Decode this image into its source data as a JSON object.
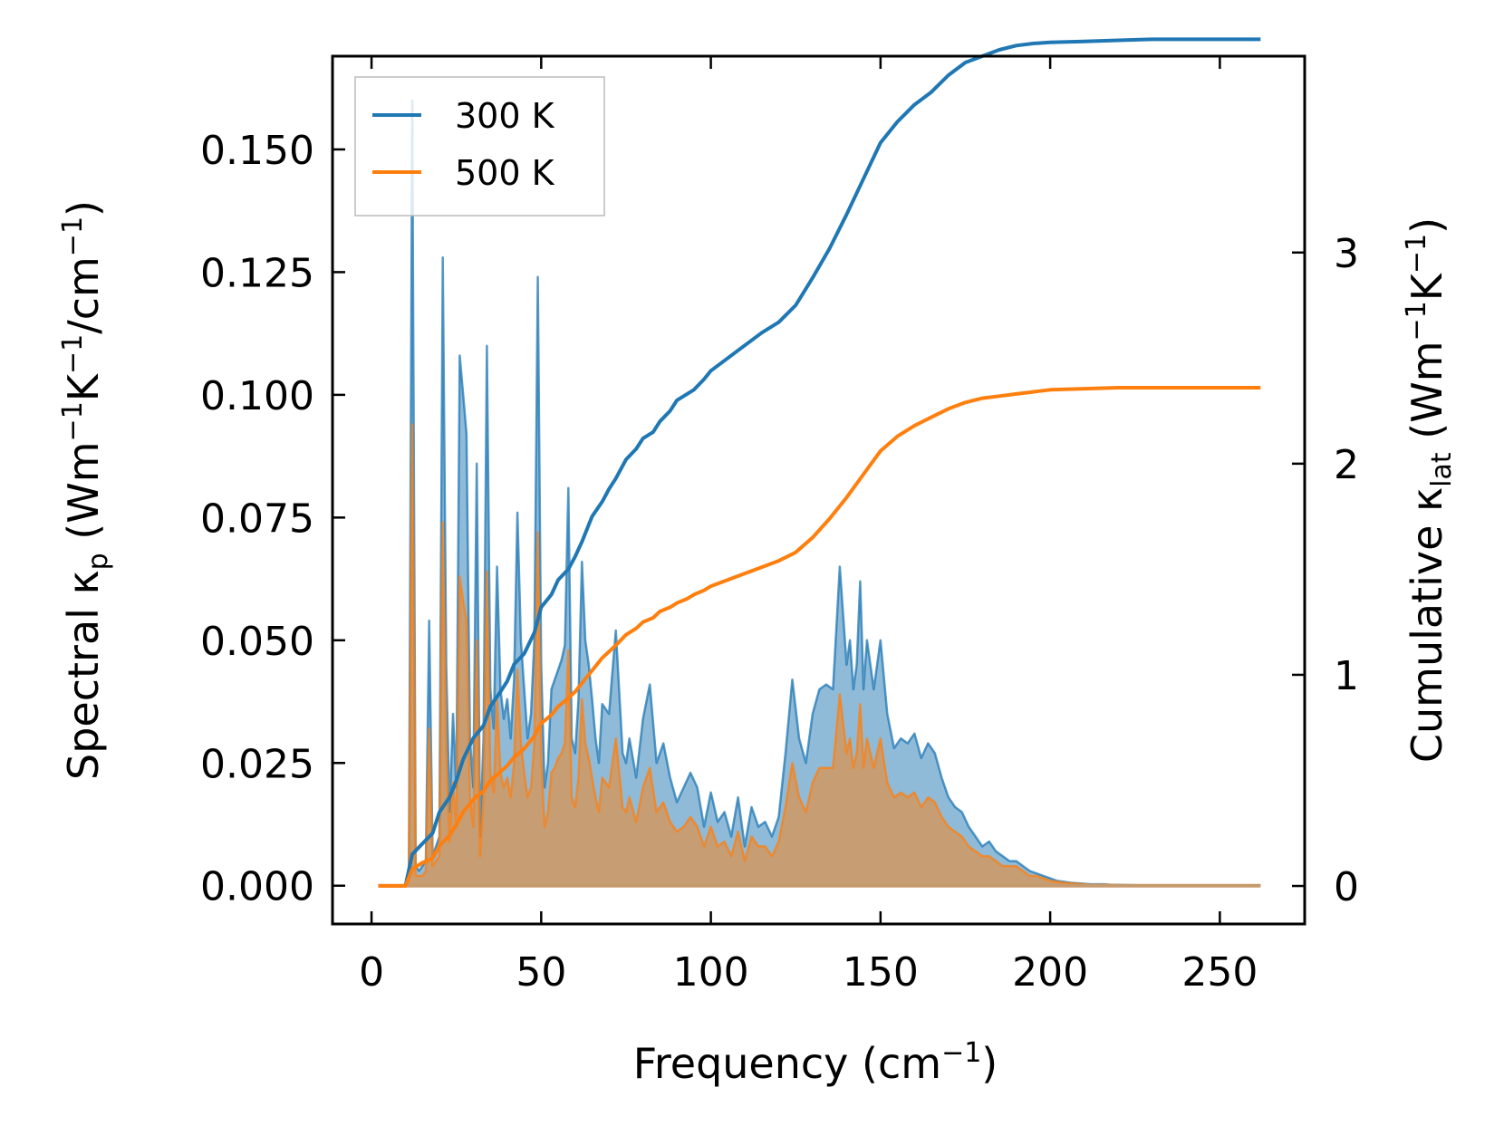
{
  "chart_data": {
    "type": "area",
    "xlabel": "Frequency (cm",
    "xlabel_sup": "−1",
    "xlabel_tail": ")",
    "ylabel_left": {
      "pre": "Spectral κ",
      "sub": "p",
      "mid1": " (Wm",
      "sup1": "−1",
      "mid2": "K",
      "sup2": "−1",
      "mid3": "/cm",
      "sup3": "−1",
      "post": ")"
    },
    "ylabel_right": {
      "pre": "Cumulative κ",
      "sub": "lat",
      "mid1": " (Wm",
      "sup1": "−1",
      "mid2": "K",
      "sup2": "−1",
      "post": ")"
    },
    "xlim": [
      -11.5,
      275
    ],
    "ylim_left": [
      -0.0078,
      0.169
    ],
    "ylim_right": [
      -0.18,
      3.93
    ],
    "xticks": [
      0,
      50,
      100,
      150,
      200,
      250
    ],
    "xtick_labels": [
      "0",
      "50",
      "100",
      "150",
      "200",
      "250"
    ],
    "yticks_left": [
      0,
      0.025,
      0.05,
      0.075,
      0.1,
      0.125,
      0.15
    ],
    "ytick_labels_left": [
      "0.000",
      "0.025",
      "0.050",
      "0.075",
      "0.100",
      "0.125",
      "0.150"
    ],
    "yticks_right": [
      0,
      1,
      2,
      3
    ],
    "ytick_labels_right": [
      "0",
      "1",
      "2",
      "3"
    ],
    "legend_position": "top-left",
    "series": [
      {
        "name": "300 K",
        "color": "#1f77b4",
        "fill_color": "#1f77b4",
        "spectral_x": [
          2,
          10,
          11,
          12,
          13,
          14,
          15,
          16,
          17,
          18,
          19,
          20,
          21,
          22,
          23,
          24,
          25,
          26,
          27,
          28,
          29,
          30,
          31,
          32,
          33,
          34,
          35,
          36,
          37,
          38,
          39,
          40,
          41,
          42,
          43,
          44,
          45,
          46,
          47,
          48,
          49,
          50,
          51,
          52,
          53,
          54,
          55,
          56,
          57,
          58,
          59,
          60,
          61,
          62,
          63,
          64,
          65,
          66,
          67,
          68,
          70,
          72,
          74,
          75,
          76,
          78,
          80,
          82,
          84,
          86,
          88,
          90,
          92,
          94,
          96,
          98,
          100,
          102,
          104,
          106,
          108,
          110,
          112,
          114,
          116,
          118,
          120,
          122,
          124,
          126,
          128,
          130,
          132,
          134,
          136,
          138,
          140,
          141,
          142,
          143,
          144,
          145,
          146,
          148,
          150,
          152,
          154,
          156,
          158,
          160,
          162,
          164,
          166,
          168,
          170,
          172,
          174,
          176,
          178,
          180,
          182,
          184,
          186,
          188,
          190,
          192,
          194,
          196,
          198,
          200,
          202,
          204,
          206,
          208,
          210,
          212,
          214,
          216,
          218,
          220,
          225,
          230,
          235,
          240,
          250,
          262
        ],
        "spectral_y": [
          0,
          0,
          0.002,
          0.16,
          0.004,
          0.003,
          0.004,
          0.005,
          0.054,
          0.006,
          0.008,
          0.01,
          0.128,
          0.045,
          0.015,
          0.035,
          0.02,
          0.108,
          0.1,
          0.092,
          0.03,
          0.02,
          0.086,
          0.01,
          0.03,
          0.11,
          0.04,
          0.032,
          0.065,
          0.04,
          0.034,
          0.038,
          0.03,
          0.042,
          0.076,
          0.05,
          0.04,
          0.03,
          0.035,
          0.05,
          0.124,
          0.045,
          0.02,
          0.025,
          0.04,
          0.042,
          0.044,
          0.046,
          0.049,
          0.081,
          0.03,
          0.027,
          0.038,
          0.066,
          0.05,
          0.045,
          0.038,
          0.03,
          0.025,
          0.037,
          0.035,
          0.052,
          0.027,
          0.025,
          0.03,
          0.022,
          0.034,
          0.041,
          0.025,
          0.029,
          0.022,
          0.017,
          0.02,
          0.023,
          0.02,
          0.012,
          0.019,
          0.013,
          0.015,
          0.01,
          0.018,
          0.008,
          0.016,
          0.012,
          0.013,
          0.01,
          0.014,
          0.027,
          0.042,
          0.03,
          0.025,
          0.035,
          0.04,
          0.041,
          0.04,
          0.065,
          0.045,
          0.05,
          0.04,
          0.045,
          0.062,
          0.04,
          0.05,
          0.04,
          0.05,
          0.035,
          0.028,
          0.03,
          0.029,
          0.031,
          0.026,
          0.029,
          0.027,
          0.022,
          0.018,
          0.016,
          0.015,
          0.012,
          0.01,
          0.008,
          0.009,
          0.007,
          0.006,
          0.005,
          0.005,
          0.004,
          0.003,
          0.0025,
          0.002,
          0.0015,
          0.001,
          0.0008,
          0.0006,
          0.0005,
          0.0004,
          0.0003,
          0.0003,
          0.0003,
          0.0002,
          0.0002,
          0.0001,
          0.0001,
          0.0001,
          0.0001,
          0.0001,
          0.0001
        ],
        "cumulative_x": [
          2,
          10,
          12,
          15,
          18,
          20,
          23,
          25,
          27,
          30,
          33,
          35,
          38,
          40,
          42,
          45,
          48,
          50,
          53,
          55,
          58,
          60,
          62,
          65,
          68,
          70,
          72,
          75,
          78,
          80,
          83,
          85,
          88,
          90,
          93,
          95,
          98,
          100,
          105,
          110,
          115,
          120,
          125,
          130,
          135,
          140,
          145,
          150,
          155,
          160,
          165,
          170,
          175,
          180,
          185,
          190,
          195,
          200,
          210,
          220,
          230,
          240,
          250,
          262
        ],
        "cumulative_y": [
          0,
          0,
          0.15,
          0.2,
          0.25,
          0.35,
          0.42,
          0.5,
          0.6,
          0.7,
          0.76,
          0.85,
          0.92,
          0.97,
          1.05,
          1.1,
          1.2,
          1.32,
          1.38,
          1.45,
          1.5,
          1.56,
          1.63,
          1.75,
          1.82,
          1.88,
          1.93,
          2.02,
          2.07,
          2.12,
          2.15,
          2.2,
          2.25,
          2.3,
          2.33,
          2.35,
          2.4,
          2.44,
          2.5,
          2.56,
          2.62,
          2.67,
          2.75,
          2.88,
          3.02,
          3.18,
          3.35,
          3.52,
          3.62,
          3.7,
          3.76,
          3.84,
          3.9,
          3.93,
          3.96,
          3.98,
          3.99,
          3.995,
          4.0,
          4.005,
          4.01,
          4.01,
          4.01,
          4.01
        ]
      },
      {
        "name": "500 K",
        "color": "#ff7f0e",
        "fill_color": "#ff7f0e",
        "spectral_x": [
          2,
          10,
          11,
          12,
          13,
          14,
          15,
          16,
          17,
          18,
          19,
          20,
          21,
          22,
          23,
          24,
          25,
          26,
          27,
          28,
          29,
          30,
          31,
          32,
          33,
          34,
          35,
          36,
          37,
          38,
          39,
          40,
          41,
          42,
          43,
          44,
          45,
          46,
          47,
          48,
          49,
          50,
          51,
          52,
          53,
          54,
          55,
          56,
          57,
          58,
          59,
          60,
          61,
          62,
          63,
          64,
          65,
          66,
          67,
          68,
          70,
          72,
          74,
          75,
          76,
          78,
          80,
          82,
          84,
          86,
          88,
          90,
          92,
          94,
          96,
          98,
          100,
          102,
          104,
          106,
          108,
          110,
          112,
          114,
          116,
          118,
          120,
          122,
          124,
          126,
          128,
          130,
          132,
          134,
          136,
          138,
          140,
          141,
          142,
          143,
          144,
          145,
          146,
          148,
          150,
          152,
          154,
          156,
          158,
          160,
          162,
          164,
          166,
          168,
          170,
          172,
          174,
          176,
          178,
          180,
          182,
          184,
          186,
          188,
          190,
          192,
          194,
          196,
          198,
          200,
          202,
          204,
          206,
          208,
          210,
          212,
          214,
          216,
          218,
          220,
          225,
          230,
          235,
          240,
          250,
          262
        ],
        "spectral_y": [
          0,
          0,
          0.001,
          0.094,
          0.002,
          0.002,
          0.002,
          0.003,
          0.032,
          0.004,
          0.005,
          0.006,
          0.074,
          0.027,
          0.009,
          0.021,
          0.012,
          0.063,
          0.058,
          0.054,
          0.018,
          0.012,
          0.05,
          0.006,
          0.018,
          0.064,
          0.023,
          0.019,
          0.038,
          0.023,
          0.02,
          0.022,
          0.018,
          0.025,
          0.044,
          0.029,
          0.023,
          0.018,
          0.02,
          0.029,
          0.072,
          0.026,
          0.012,
          0.015,
          0.023,
          0.024,
          0.026,
          0.027,
          0.029,
          0.048,
          0.018,
          0.016,
          0.022,
          0.038,
          0.029,
          0.026,
          0.022,
          0.018,
          0.015,
          0.022,
          0.02,
          0.03,
          0.016,
          0.015,
          0.018,
          0.013,
          0.02,
          0.024,
          0.015,
          0.017,
          0.013,
          0.011,
          0.012,
          0.014,
          0.012,
          0.008,
          0.012,
          0.008,
          0.009,
          0.006,
          0.011,
          0.005,
          0.01,
          0.008,
          0.008,
          0.006,
          0.009,
          0.016,
          0.025,
          0.018,
          0.015,
          0.021,
          0.024,
          0.024,
          0.024,
          0.039,
          0.027,
          0.03,
          0.024,
          0.027,
          0.037,
          0.024,
          0.03,
          0.024,
          0.03,
          0.021,
          0.018,
          0.019,
          0.018,
          0.019,
          0.016,
          0.018,
          0.017,
          0.014,
          0.012,
          0.011,
          0.01,
          0.008,
          0.007,
          0.006,
          0.006,
          0.005,
          0.004,
          0.004,
          0.004,
          0.003,
          0.002,
          0.002,
          0.0015,
          0.001,
          0.0008,
          0.0006,
          0.0005,
          0.0004,
          0.0003,
          0.0002,
          0.0002,
          0.0002,
          0.0002,
          0.0001,
          0.0001,
          0.0001,
          0.0001,
          0.0001,
          0.0001,
          0.0001
        ],
        "cumulative_x": [
          2,
          10,
          12,
          15,
          18,
          20,
          23,
          25,
          27,
          30,
          33,
          35,
          38,
          40,
          42,
          45,
          48,
          50,
          53,
          55,
          58,
          60,
          62,
          65,
          68,
          70,
          72,
          75,
          78,
          80,
          83,
          85,
          88,
          90,
          93,
          95,
          98,
          100,
          105,
          110,
          115,
          120,
          125,
          130,
          135,
          140,
          145,
          150,
          155,
          160,
          165,
          170,
          175,
          180,
          185,
          190,
          195,
          200,
          210,
          220,
          230,
          240,
          250,
          262
        ],
        "cumulative_y": [
          0,
          0,
          0.08,
          0.11,
          0.13,
          0.19,
          0.24,
          0.29,
          0.35,
          0.41,
          0.45,
          0.5,
          0.54,
          0.57,
          0.61,
          0.65,
          0.71,
          0.77,
          0.81,
          0.85,
          0.89,
          0.92,
          0.96,
          1.02,
          1.08,
          1.11,
          1.14,
          1.19,
          1.22,
          1.25,
          1.27,
          1.3,
          1.32,
          1.34,
          1.36,
          1.38,
          1.4,
          1.42,
          1.45,
          1.48,
          1.51,
          1.54,
          1.58,
          1.65,
          1.74,
          1.84,
          1.95,
          2.06,
          2.13,
          2.18,
          2.22,
          2.26,
          2.29,
          2.31,
          2.32,
          2.33,
          2.34,
          2.35,
          2.355,
          2.36,
          2.36,
          2.36,
          2.36,
          2.36
        ]
      }
    ]
  }
}
